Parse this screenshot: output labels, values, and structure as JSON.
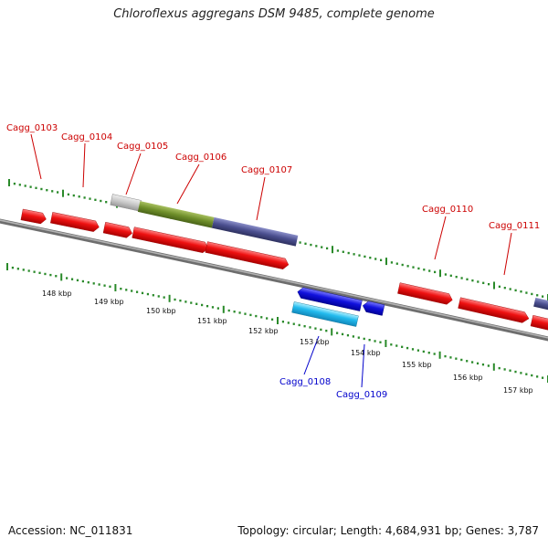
{
  "title": "Chloroflexus aggregans DSM 9485, complete genome",
  "footer": {
    "accession": "Accession: NC_011831",
    "stats": "Topology: circular; Length: 4,684,931 bp; Genes: 3,787"
  },
  "colors": {
    "forward_gene": "#ee1111",
    "reverse_gene": "#1111dd",
    "reverse_gene_light": "#22bbee",
    "feature_olive": "#6f8f2a",
    "feature_slate": "#4b4f8f",
    "feature_grey": "#c8c8c8",
    "ticks": "#2a8a2a",
    "backbone": "#888888"
  },
  "scale_labels": [
    "148 kbp",
    "149 kbp",
    "150 kbp",
    "151 kbp",
    "152 kbp",
    "153 kbp",
    "154 kbp",
    "155 kbp",
    "156 kbp",
    "157 kbp"
  ],
  "gene_labels_top": [
    "Cagg_0103",
    "Cagg_0104",
    "Cagg_0105",
    "Cagg_0106",
    "Cagg_0107",
    "Cagg_0110",
    "Cagg_0111"
  ],
  "gene_labels_bottom": [
    "Cagg_0108",
    "Cagg_0109"
  ]
}
